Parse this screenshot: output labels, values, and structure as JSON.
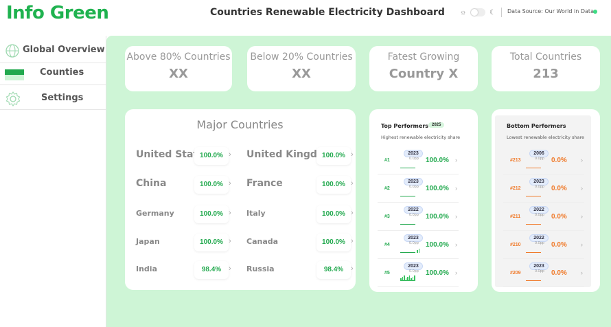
{
  "header": {
    "brand": "Info Green",
    "title": "Countries Renewable Electricity Dashboard",
    "data_source": "Data Source: Our World in Data",
    "status_color": "#3ddc84"
  },
  "sidebar": {
    "items": [
      {
        "label": "Global Overview",
        "icon": "globe-icon"
      },
      {
        "label": "Counties",
        "icon": "flag-icon"
      },
      {
        "label": "Settings",
        "icon": "gear-icon"
      }
    ]
  },
  "stats": [
    {
      "title": "Above 80% Countries",
      "value": "XX"
    },
    {
      "title": "Below 20% Countries",
      "value": "XX"
    },
    {
      "title": "Fatest Growing",
      "value": "Country X"
    },
    {
      "title": "Total Countries",
      "value": "213"
    }
  ],
  "major": {
    "title": "Major Countries",
    "left": [
      {
        "name": "United States",
        "pct": "100.0%"
      },
      {
        "name": "China",
        "pct": "100.0%"
      },
      {
        "name": "Germany",
        "pct": "100.0%"
      },
      {
        "name": "Japan",
        "pct": "100.0%"
      },
      {
        "name": "India",
        "pct": "98.4%"
      }
    ],
    "right": [
      {
        "name": "United Kingdom",
        "pct": "100.0%"
      },
      {
        "name": "France",
        "pct": "100.0%"
      },
      {
        "name": "Italy",
        "pct": "100.0%"
      },
      {
        "name": "Canada",
        "pct": "100.0%"
      },
      {
        "name": "Russia",
        "pct": "98.4%"
      }
    ]
  },
  "top": {
    "title": "Top Performers",
    "badge": "2025",
    "subtitle": "Highest renewable electricity share",
    "accent": "#22a94e",
    "rows": [
      {
        "rank": "#1",
        "year": "2023",
        "sub": "0.0pp",
        "pct": "100.0%"
      },
      {
        "rank": "#2",
        "year": "2023",
        "sub": "0.0pp",
        "pct": "100.0%"
      },
      {
        "rank": "#3",
        "year": "2022",
        "sub": "0.0pp",
        "pct": "100.0%"
      },
      {
        "rank": "#4",
        "year": "2023",
        "sub": "0.0pp",
        "pct": "100.0%"
      },
      {
        "rank": "#5",
        "year": "2023",
        "sub": "0.0pp",
        "pct": "100.0%"
      }
    ]
  },
  "bottom": {
    "title": "Bottom Performers",
    "subtitle": "Lowest renewable electricity share",
    "accent": "#f07a2a",
    "rows": [
      {
        "rank": "#213",
        "year": "2006",
        "sub": "0.0pp",
        "pct": "0.0%"
      },
      {
        "rank": "#212",
        "year": "2023",
        "sub": "0.0pp",
        "pct": "0.0%"
      },
      {
        "rank": "#211",
        "year": "2022",
        "sub": "0.0pp",
        "pct": "0.0%"
      },
      {
        "rank": "#210",
        "year": "2022",
        "sub": "0.0pp",
        "pct": "0.0%"
      },
      {
        "rank": "#209",
        "year": "2023",
        "sub": "0.0pp",
        "pct": "0.0%"
      }
    ]
  }
}
